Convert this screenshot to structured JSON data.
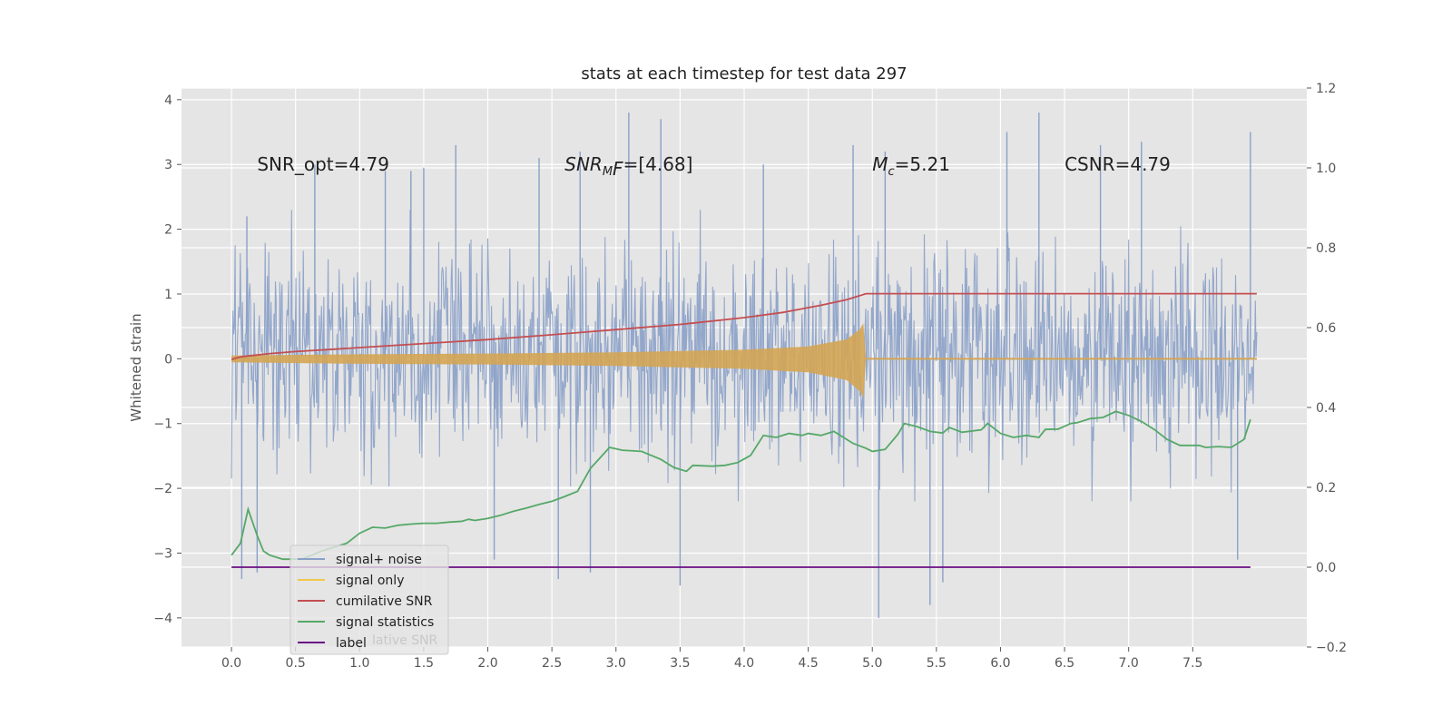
{
  "chart_data": {
    "type": "line",
    "title": "stats at each timestep for test data 297",
    "ylabel": "Whitened strain",
    "xlim": [
      -0.39,
      8.39
    ],
    "ylim": [
      -4.45,
      4.18
    ],
    "y2lim": [
      -0.2,
      1.2
    ],
    "xticks": [
      0.0,
      0.5,
      1.0,
      1.5,
      2.0,
      2.5,
      3.0,
      3.5,
      4.0,
      4.5,
      5.0,
      5.5,
      6.0,
      6.5,
      7.0,
      7.5
    ],
    "xtick_labels": [
      "0.0",
      "0.5",
      "1.0",
      "1.5",
      "2.0",
      "2.5",
      "3.0",
      "3.5",
      "4.0",
      "4.5",
      "5.0",
      "5.5",
      "6.0",
      "6.5",
      "7.0",
      "7.5"
    ],
    "yticks": [
      -4,
      -3,
      -2,
      -1,
      0,
      1,
      2,
      3,
      4
    ],
    "ytick_labels": [
      "−4",
      "−3",
      "−2",
      "−1",
      "0",
      "1",
      "2",
      "3",
      "4"
    ],
    "y2ticks": [
      -0.2,
      0.0,
      0.2,
      0.4,
      0.6,
      0.8,
      1.0,
      1.2
    ],
    "y2tick_labels": [
      "−0.2",
      "0.0",
      "0.2",
      "0.4",
      "0.6",
      "0.8",
      "1.0",
      "1.2"
    ],
    "grid": true,
    "legend_position": "lower-left",
    "annotations": [
      {
        "text": "SNR_opt=4.79",
        "x": 0.2,
        "y": 3.0,
        "math": false
      },
      {
        "text": "SNR",
        "sub": "M",
        "rest": "F=[4.68]",
        "x": 2.6,
        "y": 3.0,
        "math": true
      },
      {
        "text": "M",
        "sub": "c",
        "rest": "=5.21",
        "x": 5.0,
        "y": 3.0,
        "math": true
      },
      {
        "text": "CSNR=4.79",
        "x": 6.5,
        "y": 3.0,
        "math": false
      }
    ],
    "signal_noise": {
      "name": "signal+ noise",
      "color": "#8aa0c8",
      "x_range": [
        0.0,
        8.0
      ],
      "typical_range": [
        -2.2,
        2.3
      ],
      "peaks": [
        {
          "x": 0.08,
          "y": -3.4
        },
        {
          "x": 0.12,
          "y": 2.2
        },
        {
          "x": 0.2,
          "y": -3.3
        },
        {
          "x": 0.65,
          "y": 3.0
        },
        {
          "x": 1.2,
          "y": 2.9
        },
        {
          "x": 1.4,
          "y": 2.9
        },
        {
          "x": 1.5,
          "y": 2.95
        },
        {
          "x": 1.75,
          "y": 3.3
        },
        {
          "x": 2.05,
          "y": -3.1
        },
        {
          "x": 2.4,
          "y": 3.1
        },
        {
          "x": 2.55,
          "y": -3.4
        },
        {
          "x": 2.72,
          "y": 3.2
        },
        {
          "x": 2.8,
          "y": -3.3
        },
        {
          "x": 3.1,
          "y": 3.8
        },
        {
          "x": 3.35,
          "y": 3.7
        },
        {
          "x": 3.5,
          "y": -3.5
        },
        {
          "x": 4.15,
          "y": 3.0
        },
        {
          "x": 4.85,
          "y": 3.3
        },
        {
          "x": 5.05,
          "y": -4.0
        },
        {
          "x": 5.1,
          "y": 3.2
        },
        {
          "x": 5.45,
          "y": -3.8
        },
        {
          "x": 5.55,
          "y": -3.45
        },
        {
          "x": 6.05,
          "y": 3.5
        },
        {
          "x": 6.3,
          "y": 3.8
        },
        {
          "x": 6.78,
          "y": 3.3
        },
        {
          "x": 7.1,
          "y": 3.35
        },
        {
          "x": 7.95,
          "y": 3.5
        },
        {
          "x": 7.85,
          "y": -3.1
        }
      ]
    },
    "signal_only": {
      "name": "signal only",
      "color": "#d4a554",
      "x": [
        0.0,
        1.0,
        2.0,
        3.0,
        4.0,
        4.5,
        4.8,
        4.9,
        4.93,
        4.95,
        8.0
      ],
      "envelope": [
        0.05,
        0.07,
        0.08,
        0.1,
        0.14,
        0.19,
        0.3,
        0.45,
        0.55,
        0.0,
        0.0
      ]
    },
    "series": [
      {
        "name": "cumilative SNR",
        "color": "#c44e52",
        "axis": "right",
        "x": [
          0.0,
          0.05,
          0.1,
          0.3,
          0.5,
          0.8,
          1.0,
          1.5,
          2.0,
          2.5,
          3.0,
          3.5,
          4.0,
          4.3,
          4.6,
          4.8,
          4.95,
          5.0,
          8.0
        ],
        "values": [
          0.52,
          0.525,
          0.528,
          0.535,
          0.54,
          0.546,
          0.55,
          0.56,
          0.57,
          0.582,
          0.595,
          0.608,
          0.625,
          0.638,
          0.656,
          0.67,
          0.685,
          0.685,
          0.685
        ]
      },
      {
        "name": "signal statistics",
        "color": "#55a868",
        "axis": "right",
        "x": [
          0.0,
          0.07,
          0.13,
          0.2,
          0.25,
          0.3,
          0.4,
          0.55,
          0.7,
          0.9,
          1.0,
          1.1,
          1.2,
          1.3,
          1.4,
          1.5,
          1.6,
          1.7,
          1.8,
          1.85,
          1.9,
          2.0,
          2.1,
          2.2,
          2.3,
          2.4,
          2.5,
          2.6,
          2.7,
          2.8,
          2.95,
          3.05,
          3.2,
          3.35,
          3.45,
          3.55,
          3.6,
          3.75,
          3.85,
          3.95,
          4.05,
          4.15,
          4.25,
          4.35,
          4.45,
          4.5,
          4.6,
          4.7,
          4.85,
          4.95,
          5.0,
          5.1,
          5.2,
          5.25,
          5.35,
          5.45,
          5.55,
          5.6,
          5.7,
          5.85,
          5.9,
          6.0,
          6.1,
          6.2,
          6.3,
          6.35,
          6.45,
          6.55,
          6.6,
          6.7,
          6.8,
          6.9,
          7.0,
          7.1,
          7.2,
          7.3,
          7.4,
          7.55,
          7.6,
          7.7,
          7.8,
          7.85,
          7.9,
          7.95
        ],
        "values": [
          0.03,
          0.06,
          0.145,
          0.08,
          0.04,
          0.03,
          0.02,
          0.02,
          0.04,
          0.06,
          0.085,
          0.1,
          0.098,
          0.105,
          0.108,
          0.11,
          0.11,
          0.113,
          0.115,
          0.12,
          0.117,
          0.122,
          0.13,
          0.14,
          0.148,
          0.157,
          0.165,
          0.177,
          0.19,
          0.247,
          0.3,
          0.293,
          0.29,
          0.27,
          0.25,
          0.24,
          0.255,
          0.253,
          0.255,
          0.262,
          0.28,
          0.33,
          0.325,
          0.335,
          0.33,
          0.335,
          0.33,
          0.34,
          0.31,
          0.298,
          0.29,
          0.295,
          0.333,
          0.36,
          0.352,
          0.34,
          0.336,
          0.35,
          0.338,
          0.344,
          0.36,
          0.335,
          0.325,
          0.33,
          0.325,
          0.345,
          0.346,
          0.36,
          0.362,
          0.372,
          0.375,
          0.39,
          0.38,
          0.365,
          0.345,
          0.32,
          0.305,
          0.305,
          0.3,
          0.302,
          0.3,
          0.31,
          0.32,
          0.37
        ]
      },
      {
        "name": "label",
        "color": "#6a0d83",
        "axis": "right",
        "x": [
          0.0,
          7.95
        ],
        "values": [
          0.0,
          0.0
        ]
      }
    ],
    "legend": {
      "entries": [
        {
          "label": "signal+ noise",
          "color": "#8aa0c8"
        },
        {
          "label": "signal only",
          "color": "#f0c84a"
        },
        {
          "label": "cumilative SNR",
          "color": "#c44e52"
        },
        {
          "label": "signal statistics",
          "color": "#55a868"
        },
        {
          "label": "label",
          "color": "#6a0d83"
        }
      ],
      "ghost_text": "lative SNR"
    }
  }
}
